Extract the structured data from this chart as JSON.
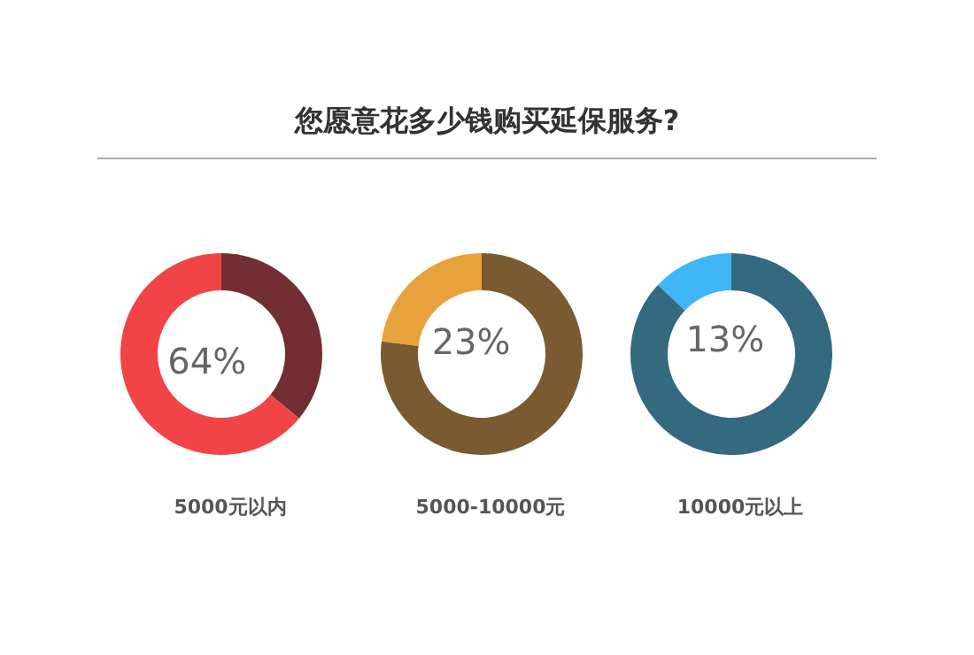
{
  "chart_data": [
    {
      "type": "donut",
      "xlabel": "5000元以内",
      "categories": [
        null,
        null
      ],
      "values": [
        64,
        36
      ],
      "colors": [
        "#f04447",
        "#722f33"
      ],
      "value_labels": [
        "64%",
        null
      ]
    },
    {
      "type": "donut",
      "title": "您愿意花多少钱购买延保服务?",
      "xlabel": "5000-10000元",
      "categories": [
        null,
        null
      ],
      "values": [
        23,
        77
      ],
      "colors": [
        "#e8a23c",
        "#7a5a30"
      ],
      "value_labels": [
        "23%",
        null
      ]
    },
    {
      "type": "donut",
      "xlabel": "10000元以上",
      "categories": [
        null,
        null
      ],
      "values": [
        13,
        87
      ],
      "colors": [
        "#3fb6f5",
        "#336a80"
      ],
      "value_labels": [
        "13%",
        null
      ]
    }
  ]
}
